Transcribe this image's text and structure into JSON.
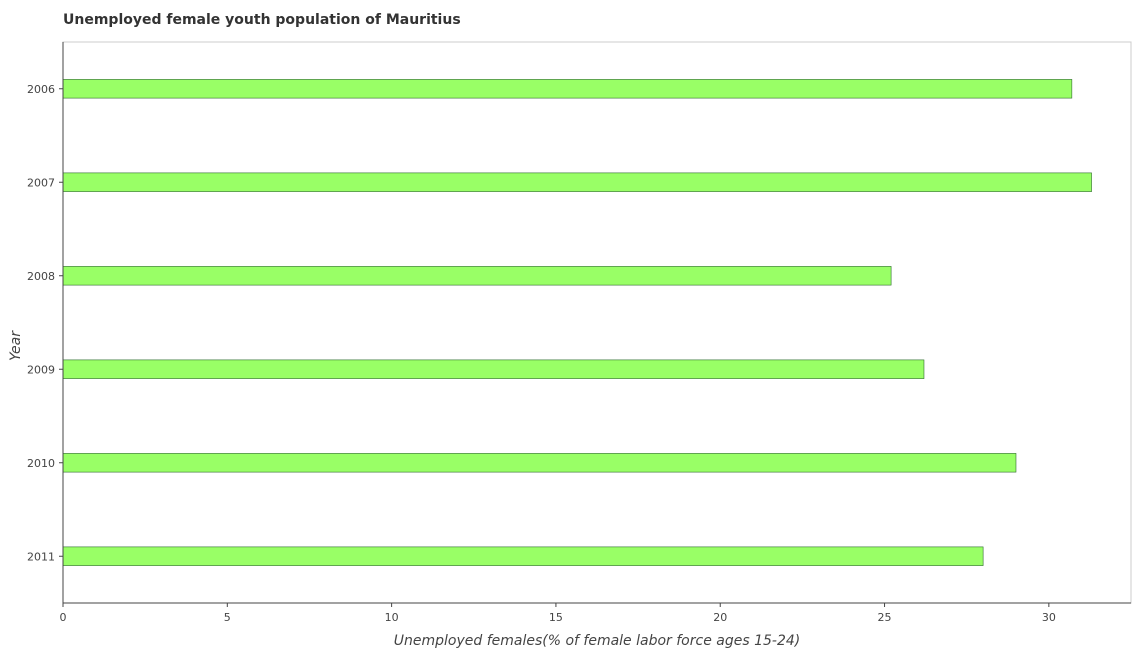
{
  "chart_data": {
    "type": "bar",
    "orientation": "horizontal",
    "title": "Unemployed female youth population of Mauritius",
    "xlabel": "Unemployed females(% of female labor force ages 15-24)",
    "ylabel": "Year",
    "categories": [
      "2006",
      "2007",
      "2008",
      "2009",
      "2010",
      "2011"
    ],
    "values": [
      30.7,
      31.3,
      25.2,
      26.2,
      29.0,
      28.0
    ],
    "xlim": [
      0,
      32.5
    ],
    "xticks": [
      0,
      5,
      10,
      15,
      20,
      25,
      30
    ],
    "xtick_labels": [
      "0",
      "5",
      "10",
      "15",
      "20",
      "25",
      "30"
    ],
    "grid": false,
    "legend": "none",
    "bar_color": "#99ff66",
    "bar_edge_color": "#2d6a2d"
  }
}
